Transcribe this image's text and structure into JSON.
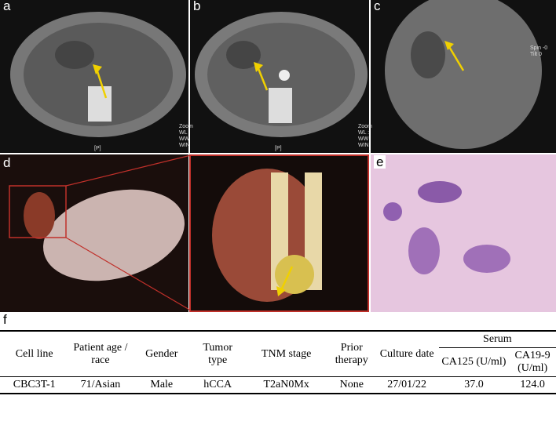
{
  "panels": {
    "a": "a",
    "b": "b",
    "c": "c",
    "d": "d",
    "e": "e",
    "f": "f"
  },
  "overlays": {
    "ct_a": [
      "Zoom",
      "WL",
      "WW",
      "WIN"
    ],
    "ct_b": [
      "Zoom",
      "WL :",
      "WW",
      "WIN"
    ],
    "ct_c": [
      "Spin -0",
      "Tilt 0"
    ],
    "p_a": "[P]",
    "p_b": "[P]"
  },
  "table": {
    "serum": "Serum",
    "headers": [
      "Cell line",
      "Patient age / race",
      "Gender",
      "Tumor type",
      "TNM stage",
      "Prior therapy",
      "Culture date",
      "CA125 (U/ml)",
      "CA19-9 (U/ml)"
    ],
    "rows": [
      [
        "CBC3T-1",
        "71/Asian",
        "Male",
        "hCCA",
        "T2aN0Mx",
        "None",
        "27/01/22",
        "37.0",
        "124.0"
      ]
    ]
  }
}
